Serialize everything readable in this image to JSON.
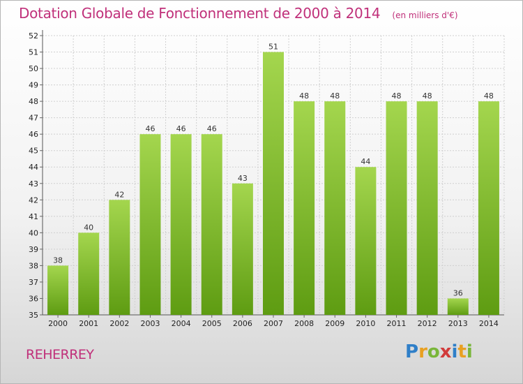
{
  "header": {
    "title": "Dotation Globale de Fonctionnement de 2000 à 2014",
    "unit": "(en milliers d'€)"
  },
  "footer": {
    "town": "REHERREY",
    "logo_letters": [
      "P",
      "r",
      "o",
      "x",
      "i",
      "t",
      "i"
    ]
  },
  "colors": {
    "title": "#c0307a",
    "bar_light": "#9fd24a",
    "bar_dark": "#5e9c12",
    "grid": "#d0d0d0"
  },
  "chart_data": {
    "type": "bar",
    "title": "Dotation Globale de Fonctionnement de 2000 à 2014",
    "subtitle": "(en milliers d'€)",
    "xlabel": "",
    "ylabel": "",
    "categories": [
      "2000",
      "2001",
      "2002",
      "2003",
      "2004",
      "2005",
      "2006",
      "2007",
      "2008",
      "2009",
      "2010",
      "2011",
      "2012",
      "2013",
      "2014"
    ],
    "values": [
      38,
      40,
      42,
      46,
      46,
      46,
      43,
      51,
      48,
      48,
      44,
      48,
      48,
      36,
      48
    ],
    "ylim": [
      35,
      52
    ],
    "yticks": [
      35,
      36,
      37,
      38,
      39,
      40,
      41,
      42,
      43,
      44,
      45,
      46,
      47,
      48,
      49,
      50,
      51,
      52
    ],
    "grid": true,
    "legend": "none"
  }
}
